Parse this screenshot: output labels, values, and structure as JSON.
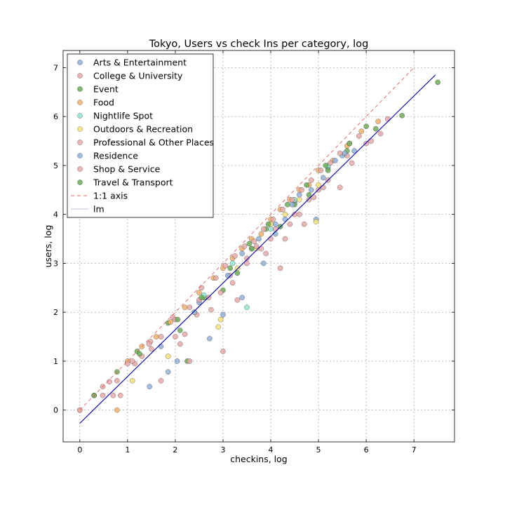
{
  "chart_data": {
    "type": "scatter",
    "title": "Tokyo, Users vs check Ins per category, log",
    "xlabel": "checkins, log",
    "ylabel": "users, log",
    "xlim": [
      -0.35,
      7.85
    ],
    "ylim": [
      -0.65,
      7.35
    ],
    "x_ticks": [
      0,
      1,
      2,
      3,
      4,
      5,
      6,
      7
    ],
    "y_ticks": [
      0,
      1,
      2,
      3,
      4,
      5,
      6,
      7
    ],
    "grid": true,
    "grid_style": "dotted",
    "legend_position": "top-left",
    "series": [
      {
        "name": "Arts & Entertainment",
        "color": "#8fb0d8",
        "points": [
          [
            1.46,
            0.48
          ],
          [
            1.85,
            0.78
          ],
          [
            2.04,
            1.0
          ],
          [
            2.72,
            1.46
          ],
          [
            3.0,
            1.95
          ],
          [
            3.4,
            2.3
          ],
          [
            3.85,
            3.0
          ],
          [
            4.1,
            3.6
          ],
          [
            4.3,
            3.9
          ],
          [
            4.5,
            4.25
          ],
          [
            4.6,
            4.4
          ],
          [
            4.95,
            3.9
          ],
          [
            5.1,
            4.75
          ],
          [
            5.2,
            4.95
          ],
          [
            5.5,
            5.2
          ],
          [
            5.75,
            5.3
          ],
          [
            2.5,
            2.2
          ],
          [
            3.6,
            3.3
          ]
        ]
      },
      {
        "name": "College & University",
        "color": "#e8a9a9",
        "points": [
          [
            0.48,
            0.3
          ],
          [
            0.62,
            0.58
          ],
          [
            0.7,
            0.3
          ],
          [
            0.85,
            0.3
          ],
          [
            1.15,
            0.95
          ],
          [
            1.3,
            1.1
          ],
          [
            1.5,
            1.25
          ],
          [
            1.7,
            0.6
          ],
          [
            2.0,
            1.5
          ],
          [
            2.2,
            1.55
          ],
          [
            2.45,
            1.95
          ],
          [
            2.7,
            2.3
          ],
          [
            3.0,
            1.2
          ],
          [
            3.2,
            2.6
          ],
          [
            3.5,
            3.0
          ],
          [
            3.8,
            3.3
          ],
          [
            4.0,
            3.5
          ],
          [
            4.2,
            2.9
          ],
          [
            4.4,
            3.8
          ],
          [
            4.6,
            4.0
          ],
          [
            4.8,
            4.3
          ],
          [
            5.0,
            4.5
          ],
          [
            5.2,
            4.7
          ],
          [
            5.6,
            5.2
          ],
          [
            6.1,
            5.5
          ]
        ]
      },
      {
        "name": "Event",
        "color": "#6dab58",
        "points": [
          [
            0.78,
            0.78
          ],
          [
            1.2,
            1.2
          ],
          [
            1.85,
            1.78
          ],
          [
            2.1,
            1.63
          ],
          [
            2.25,
            1.0
          ],
          [
            2.6,
            2.3
          ],
          [
            3.0,
            2.45
          ],
          [
            3.3,
            2.8
          ],
          [
            3.6,
            3.3
          ],
          [
            3.9,
            3.7
          ],
          [
            4.2,
            3.75
          ],
          [
            4.5,
            4.2
          ],
          [
            4.8,
            4.4
          ],
          [
            5.2,
            4.9
          ],
          [
            5.6,
            5.3
          ],
          [
            6.0,
            5.8
          ]
        ]
      },
      {
        "name": "Food",
        "color": "#f5b16a",
        "points": [
          [
            0.0,
            0.0
          ],
          [
            0.3,
            0.3
          ],
          [
            0.78,
            0.0
          ],
          [
            1.0,
            1.0
          ],
          [
            1.3,
            1.3
          ],
          [
            1.6,
            1.5
          ],
          [
            1.9,
            1.8
          ],
          [
            2.2,
            2.1
          ],
          [
            2.5,
            2.4
          ],
          [
            2.8,
            2.7
          ],
          [
            3.0,
            2.9
          ],
          [
            3.2,
            3.1
          ],
          [
            3.4,
            3.3
          ],
          [
            3.6,
            3.5
          ],
          [
            3.8,
            3.6
          ],
          [
            4.0,
            3.9
          ],
          [
            4.2,
            4.1
          ],
          [
            4.4,
            4.3
          ],
          [
            4.6,
            4.5
          ],
          [
            4.8,
            4.6
          ],
          [
            5.0,
            4.9
          ],
          [
            5.3,
            5.1
          ],
          [
            5.6,
            5.4
          ],
          [
            5.9,
            5.7
          ],
          [
            6.25,
            5.9
          ]
        ]
      },
      {
        "name": "Nightlife Spot",
        "color": "#8fe6d6",
        "points": [
          [
            3.5,
            2.1
          ],
          [
            4.0,
            3.7
          ],
          [
            4.5,
            4.3
          ],
          [
            5.2,
            5.0
          ],
          [
            3.2,
            3.0
          ],
          [
            2.6,
            2.35
          ]
        ]
      },
      {
        "name": "Outdoors & Recreation",
        "color": "#f6e27a",
        "points": [
          [
            1.1,
            0.6
          ],
          [
            1.85,
            1.1
          ],
          [
            2.9,
            1.7
          ],
          [
            2.95,
            1.85
          ],
          [
            3.3,
            2.9
          ],
          [
            3.7,
            3.3
          ],
          [
            4.0,
            3.8
          ],
          [
            4.95,
            3.85
          ],
          [
            4.3,
            4.0
          ],
          [
            4.6,
            4.3
          ],
          [
            5.0,
            4.6
          ],
          [
            2.4,
            2.0
          ]
        ]
      },
      {
        "name": "Professional & Other Places",
        "color": "#e8a9a9",
        "points": [
          [
            0.48,
            0.48
          ],
          [
            1.0,
            0.95
          ],
          [
            1.48,
            1.4
          ],
          [
            1.95,
            1.9
          ],
          [
            2.1,
            1.35
          ],
          [
            2.3,
            1.0
          ],
          [
            2.5,
            2.25
          ],
          [
            2.75,
            2.05
          ],
          [
            2.95,
            2.4
          ],
          [
            3.15,
            2.75
          ],
          [
            3.3,
            2.25
          ],
          [
            3.5,
            3.1
          ],
          [
            3.7,
            3.35
          ],
          [
            3.9,
            3.2
          ],
          [
            4.1,
            3.7
          ],
          [
            4.3,
            3.5
          ],
          [
            4.5,
            4.0
          ],
          [
            4.7,
            3.8
          ],
          [
            4.9,
            4.35
          ],
          [
            5.1,
            4.55
          ],
          [
            5.45,
            4.55
          ],
          [
            5.7,
            5.05
          ],
          [
            6.0,
            5.45
          ],
          [
            6.3,
            5.65
          ],
          [
            6.45,
            5.95
          ]
        ]
      },
      {
        "name": "Residence",
        "color": "#8fb0d8",
        "points": [
          [
            1.7,
            1.3
          ],
          [
            2.4,
            2.0
          ],
          [
            3.1,
            2.75
          ],
          [
            3.4,
            3.2
          ],
          [
            3.75,
            3.5
          ],
          [
            4.1,
            3.8
          ],
          [
            4.45,
            4.2
          ],
          [
            4.85,
            4.5
          ],
          [
            5.35,
            5.1
          ],
          [
            5.55,
            5.25
          ]
        ]
      },
      {
        "name": "Shop & Service",
        "color": "#e8a9a9",
        "points": [
          [
            0.0,
            0.0
          ],
          [
            0.3,
            0.3
          ],
          [
            0.78,
            0.6
          ],
          [
            1.1,
            1.0
          ],
          [
            1.45,
            1.35
          ],
          [
            1.7,
            1.5
          ],
          [
            2.0,
            1.85
          ],
          [
            2.3,
            2.1
          ],
          [
            2.55,
            2.5
          ],
          [
            2.85,
            2.7
          ],
          [
            3.05,
            2.95
          ],
          [
            3.25,
            3.15
          ],
          [
            3.45,
            3.35
          ],
          [
            3.65,
            3.45
          ],
          [
            3.85,
            3.7
          ],
          [
            4.05,
            3.9
          ],
          [
            4.25,
            4.1
          ],
          [
            4.45,
            4.3
          ],
          [
            4.65,
            4.5
          ],
          [
            4.85,
            4.7
          ],
          [
            5.05,
            4.9
          ],
          [
            5.25,
            5.05
          ],
          [
            5.45,
            5.25
          ],
          [
            5.65,
            5.45
          ],
          [
            5.85,
            5.6
          ]
        ]
      },
      {
        "name": "Travel & Transport",
        "color": "#6dab58",
        "points": [
          [
            0.3,
            0.3
          ],
          [
            1.25,
            1.15
          ],
          [
            2.05,
            1.85
          ],
          [
            2.55,
            2.3
          ],
          [
            3.15,
            2.9
          ],
          [
            3.55,
            3.4
          ],
          [
            3.95,
            3.8
          ],
          [
            4.35,
            4.2
          ],
          [
            4.75,
            4.6
          ],
          [
            5.15,
            5.0
          ],
          [
            5.65,
            5.45
          ],
          [
            6.2,
            5.75
          ],
          [
            6.75,
            6.02
          ],
          [
            7.5,
            6.7
          ]
        ]
      }
    ],
    "lines": [
      {
        "name": "1:1 axis",
        "color": "#e06060",
        "style": "dashed",
        "x": [
          0,
          7
        ],
        "y": [
          0,
          7
        ]
      },
      {
        "name": "lm",
        "color": "#0000aa",
        "style": "solid",
        "x": [
          0,
          7.45
        ],
        "y": [
          -0.27,
          6.85
        ]
      }
    ],
    "legend_line_colors": {
      "one_to_one": "#e06060",
      "lm": "#c0c0ee"
    }
  }
}
